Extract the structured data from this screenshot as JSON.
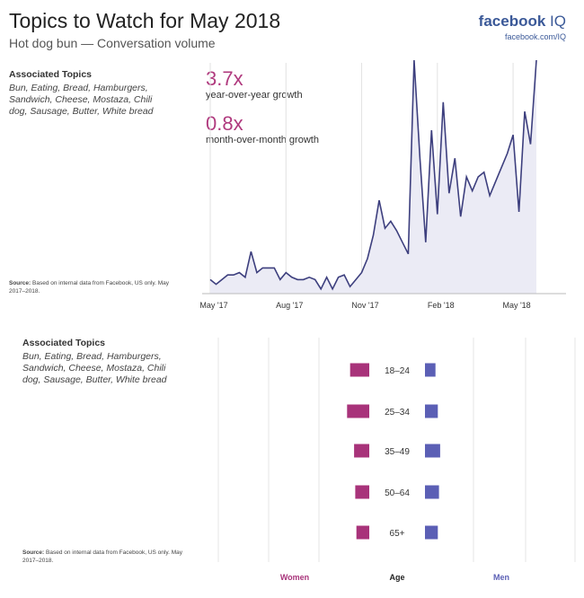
{
  "header": {
    "title": "Topics to Watch for May 2018",
    "subtitle": "Hot dog bun — Conversation volume",
    "brand": "facebook",
    "brand_suffix": "IQ",
    "brand_url": "facebook.com/IQ"
  },
  "topics": {
    "heading": "Associated Topics",
    "body": "Bun, Eating, Bread, Hamburgers, Sandwich, Cheese, Mostaza, Chili dog, Sausage, Butter, White bread"
  },
  "source": {
    "label": "Source:",
    "text": "Based on internal data from Facebook, US only. May 2017–2018."
  },
  "stats": {
    "yoy_value": "3.7x",
    "yoy_label": "year-over-year growth",
    "mom_value": "0.8x",
    "mom_label": "month-over-month growth"
  },
  "colors": {
    "line": "#3d3f7e",
    "area": "#ebebf5",
    "women": "#a8337a",
    "men": "#5b5fb5",
    "grid": "#e2e2e2"
  },
  "chart_data": [
    {
      "type": "area",
      "x_tick_labels": [
        "May '17",
        "Aug '17",
        "Nov '17",
        "Feb '18",
        "May '18"
      ],
      "x_tick_index": [
        0,
        13,
        26,
        39,
        52
      ],
      "values": [
        6,
        4,
        6,
        8,
        8,
        9,
        7,
        18,
        9,
        11,
        11,
        11,
        6,
        9,
        7,
        6,
        6,
        7,
        6,
        2,
        7,
        2,
        7,
        8,
        3,
        6,
        9,
        15,
        25,
        40,
        28,
        31,
        27,
        22,
        17,
        100,
        58,
        22,
        70,
        34,
        82,
        43,
        58,
        33,
        50,
        44,
        50,
        52,
        42,
        48,
        54,
        60,
        68,
        35,
        78,
        64,
        100
      ],
      "y_range": [
        0,
        100
      ]
    },
    {
      "type": "bar",
      "categories": [
        "18–24",
        "25–34",
        "35–49",
        "50–64",
        "65+"
      ],
      "series": [
        {
          "name": "Women",
          "values": [
            0.82,
            0.95,
            0.65,
            0.6,
            0.55
          ]
        },
        {
          "name": "Men",
          "values": [
            0.45,
            0.55,
            0.65,
            0.6,
            0.55
          ]
        }
      ],
      "legend": {
        "women": "Women",
        "age": "Age",
        "men": "Men"
      }
    }
  ]
}
